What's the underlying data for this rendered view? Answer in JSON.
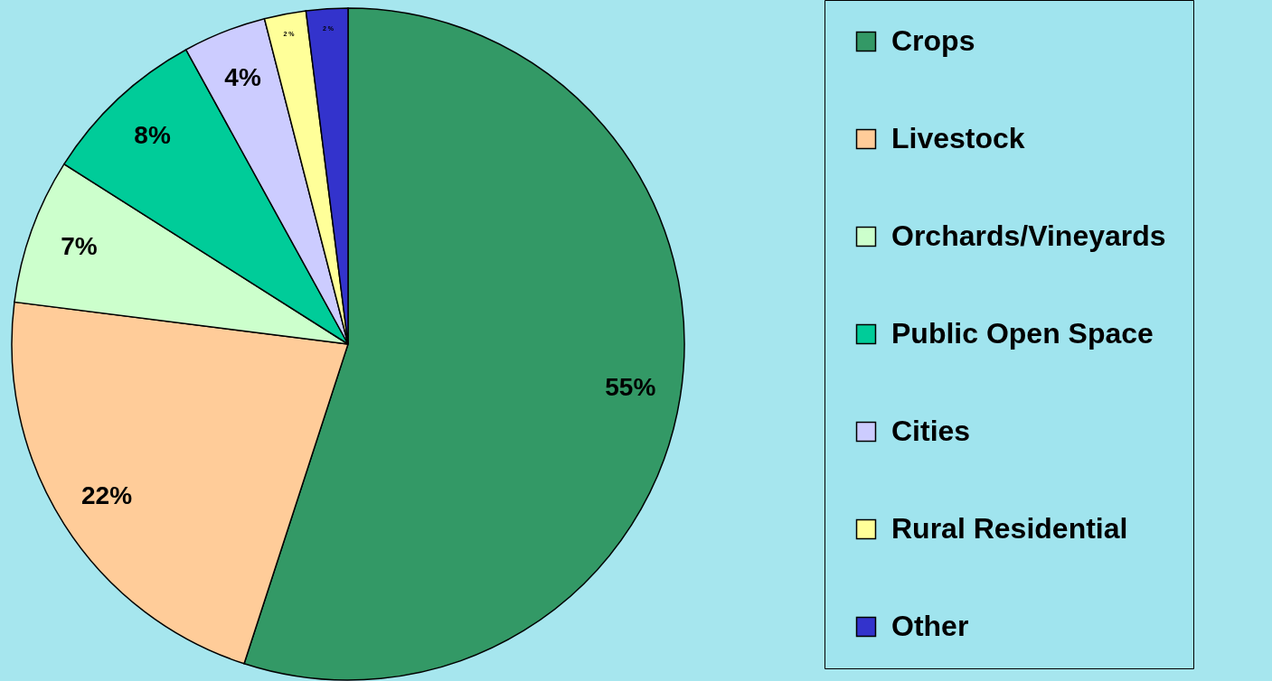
{
  "chart_data": {
    "type": "pie",
    "categories": [
      "Crops",
      "Livestock",
      "Orchards/Vineyards",
      "Public Open Space",
      "Cities",
      "Rural Residential",
      "Other"
    ],
    "values": [
      55,
      22,
      7,
      8,
      4,
      2,
      2
    ],
    "colors": [
      "#339966",
      "#ffcc99",
      "#ccffcc",
      "#00cc99",
      "#ccccff",
      "#ffff99",
      "#3333cc"
    ],
    "value_labels": [
      "55%",
      "22%",
      "7%",
      "8%",
      "4%",
      "2 %",
      "2 %"
    ],
    "legend": "right"
  }
}
